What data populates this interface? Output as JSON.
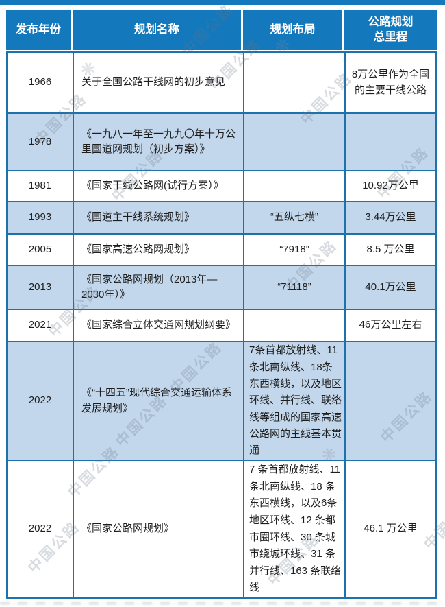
{
  "accent": {
    "header_bg": "#1478bc",
    "row_alt_bg": "#c3d7ec",
    "border": "#1d71ad"
  },
  "watermark": {
    "text": "中国公路",
    "flower": "❋"
  },
  "table": {
    "headers": [
      "发布年份",
      "规划名称",
      "规划布局",
      "公路规划\n总里程"
    ],
    "rows": [
      {
        "year": "1966",
        "name": "关于全国公路干线网的初步意见",
        "layout": "",
        "mileage": "8万公里作为全国的主要干线公路"
      },
      {
        "year": "1978",
        "name": "《一九八一年至一九九〇年十万公里国道网规划（初步方案）》",
        "layout": "",
        "mileage": ""
      },
      {
        "year": "1981",
        "name": "《国家干线公路网(试行方案）》",
        "layout": "",
        "mileage": "10.92万公里"
      },
      {
        "year": "1993",
        "name": "《国道主干线系统规划》",
        "layout": "“五纵七横”",
        "mileage": "3.44万公里"
      },
      {
        "year": "2005",
        "name": "《国家高速公路网规划》",
        "layout": "“7918”",
        "mileage": "8.5 万公里"
      },
      {
        "year": "2013",
        "name": "《国家公路网规划（2013年—2030年）》",
        "layout": "“71118”",
        "mileage": "40.1万公里"
      },
      {
        "year": "2021",
        "name": "《国家综合立体交通网规划纲要》",
        "layout": "",
        "mileage": "46万公里左右"
      },
      {
        "year": "2022",
        "name": "《“十四五”现代综合交通运输体系发展规划》",
        "layout": "7条首都放射线、11条北南纵线、18条东西横线，以及地区环线、并行线、联络线等组成的国家高速公路网的主线基本贯通",
        "mileage": ""
      },
      {
        "year": "2022",
        "name": "《国家公路网规划》",
        "layout": "7 条首都放射线、11 条北南纵线、18 条东西横线，以及6条地区环线、12 条都市圈环线、30 条城市绕城环线、31 条并行线、163 条联络线",
        "mileage": "46.1 万公里"
      }
    ]
  },
  "chart_data": {
    "type": "table",
    "columns": [
      "发布年份",
      "规划名称",
      "规划布局",
      "公路规划总里程"
    ],
    "rows": [
      [
        "1966",
        "关于全国公路干线网的初步意见",
        "",
        "8万公里作为全国的主要干线公路"
      ],
      [
        "1978",
        "《一九八一年至一九九〇年十万公里国道网规划（初步方案）》",
        "",
        ""
      ],
      [
        "1981",
        "《国家干线公路网(试行方案）》",
        "",
        "10.92万公里"
      ],
      [
        "1993",
        "《国道主干线系统规划》",
        "“五纵七横”",
        "3.44万公里"
      ],
      [
        "2005",
        "《国家高速公路网规划》",
        "“7918”",
        "8.5 万公里"
      ],
      [
        "2013",
        "《国家公路网规划（2013年—2030年）》",
        "“71118”",
        "40.1万公里"
      ],
      [
        "2021",
        "《国家综合立体交通网规划纲要》",
        "",
        "46万公里左右"
      ],
      [
        "2022",
        "《“十四五”现代综合交通运输体系发展规划》",
        "7条首都放射线、11条北南纵线、18条东西横线，以及地区环线、并行线、联络线等组成的国家高速公路网的主线基本贯通",
        ""
      ],
      [
        "2022",
        "《国家公路网规划》",
        "7 条首都放射线、11 条北南纵线、18 条东西横线，以及6条地区环线、12 条都市圈环线、30 条城市绕城环线、31 条并行线、163 条联络线",
        "46.1 万公里"
      ]
    ],
    "layout_hints": {
      "header_style": "blue-bg-white-text",
      "zebra_rows": true
    }
  }
}
